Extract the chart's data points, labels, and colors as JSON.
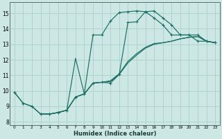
{
  "xlabel": "Humidex (Indice chaleur)",
  "bg_color": "#cde8e4",
  "line_color": "#1a6e64",
  "grid_color": "#aacfca",
  "xlim": [
    -0.5,
    23.5
  ],
  "ylim": [
    7.8,
    15.7
  ],
  "xticks": [
    0,
    1,
    2,
    3,
    4,
    5,
    6,
    7,
    8,
    9,
    10,
    11,
    12,
    13,
    14,
    15,
    16,
    17,
    18,
    19,
    20,
    21,
    22,
    23
  ],
  "yticks": [
    8,
    9,
    10,
    11,
    12,
    13,
    14,
    15
  ],
  "line1_x": [
    0,
    1,
    2,
    3,
    4,
    5,
    6,
    7,
    8,
    9,
    10,
    11,
    12,
    13,
    14,
    15,
    16,
    17,
    18,
    19,
    20,
    21,
    22,
    23
  ],
  "line1_y": [
    9.9,
    9.2,
    9.0,
    8.5,
    8.5,
    8.6,
    8.75,
    9.6,
    9.8,
    13.6,
    13.6,
    14.5,
    15.05,
    15.1,
    15.15,
    15.1,
    14.7,
    14.25,
    13.6,
    13.6,
    13.6,
    13.2,
    13.2,
    13.1
  ],
  "line2_x": [
    0,
    1,
    2,
    3,
    4,
    5,
    6,
    7,
    8,
    9,
    10,
    11,
    12,
    13,
    14,
    15,
    16,
    17,
    18,
    19,
    20,
    21,
    22,
    23
  ],
  "line2_y": [
    9.9,
    9.2,
    9.0,
    8.5,
    8.5,
    8.6,
    8.75,
    9.6,
    9.8,
    10.5,
    10.55,
    10.5,
    11.05,
    14.4,
    14.45,
    15.1,
    15.15,
    14.7,
    14.25,
    13.6,
    13.6,
    13.6,
    13.2,
    13.1
  ],
  "line3_x": [
    3,
    4,
    5,
    6,
    7,
    8,
    9,
    10,
    11,
    12,
    13,
    14,
    15,
    16,
    17,
    18,
    19,
    20,
    21,
    22,
    23
  ],
  "line3_y": [
    8.5,
    8.5,
    8.6,
    8.75,
    9.6,
    9.8,
    10.5,
    10.55,
    10.6,
    11.05,
    11.8,
    12.3,
    12.75,
    13.0,
    13.1,
    13.2,
    13.35,
    13.45,
    13.5,
    13.2,
    13.1
  ],
  "line4_x": [
    3,
    4,
    5,
    6,
    7,
    8,
    9,
    10,
    11,
    12,
    13,
    14,
    15,
    16,
    17,
    18,
    19,
    20,
    21,
    22,
    23
  ],
  "line4_y": [
    8.5,
    8.5,
    8.6,
    8.75,
    12.1,
    9.8,
    10.5,
    10.55,
    10.65,
    11.1,
    11.9,
    12.4,
    12.8,
    13.05,
    13.1,
    13.2,
    13.35,
    13.45,
    13.5,
    13.2,
    13.1
  ]
}
